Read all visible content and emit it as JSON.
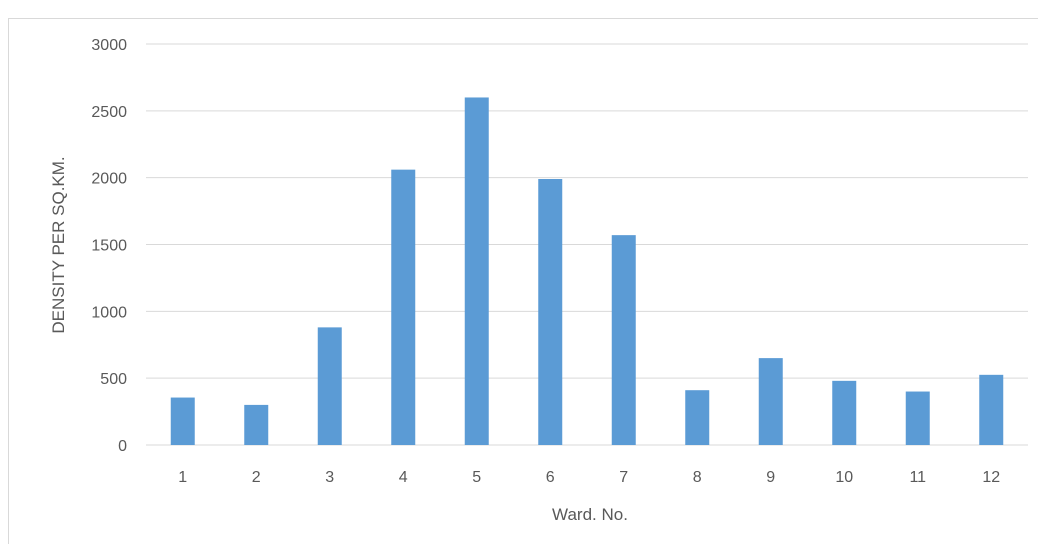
{
  "chart_data": {
    "type": "bar",
    "categories": [
      "1",
      "2",
      "3",
      "4",
      "5",
      "6",
      "7",
      "8",
      "9",
      "10",
      "11",
      "12"
    ],
    "values": [
      355,
      300,
      880,
      2060,
      2600,
      1990,
      1570,
      410,
      650,
      480,
      400,
      525
    ],
    "xlabel": "Ward. No.",
    "ylabel": "DENSITY PER SQ.KM.",
    "ylim": [
      0,
      3000
    ],
    "yticks": [
      0,
      500,
      1000,
      1500,
      2000,
      2500,
      3000
    ],
    "grid": true,
    "legend": "none",
    "bar_color": "#5b9bd5",
    "grid_color": "#d9d9d9"
  }
}
